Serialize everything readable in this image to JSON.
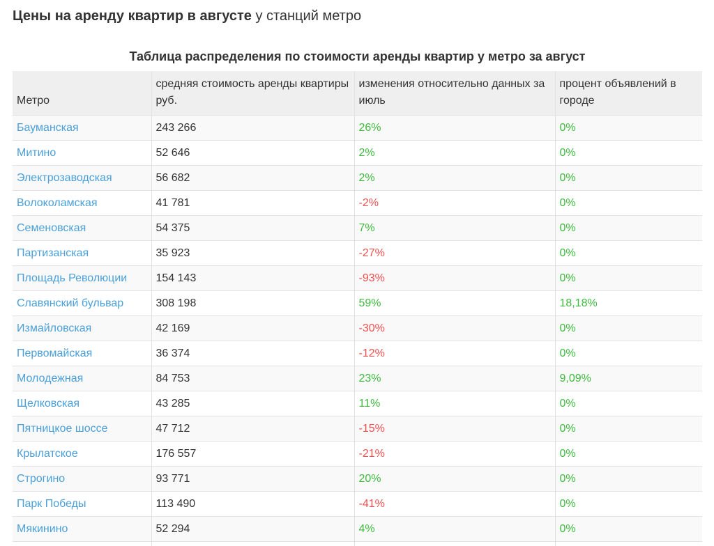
{
  "heading": {
    "bold": "Цены на аренду квартир в августе",
    "normal": "у станций метро"
  },
  "table": {
    "caption": "Таблица распределения по стоимости аренды квартир у метро за август",
    "headers": [
      "Метро",
      "средняя стоимость аренды квартиры руб.",
      "изменения относительно данных за июль",
      "процент объявлений в городе"
    ],
    "colors": {
      "positive": "#3fba3f",
      "negative": "#f05050",
      "link": "#4a9fd8"
    },
    "rows": [
      {
        "metro": "Бауманская",
        "price": "243 266",
        "change": "26%",
        "share": "0%"
      },
      {
        "metro": "Митино",
        "price": "52 646",
        "change": "2%",
        "share": "0%"
      },
      {
        "metro": "Электрозаводская",
        "price": "56 682",
        "change": "2%",
        "share": "0%"
      },
      {
        "metro": "Волоколамская",
        "price": "41 781",
        "change": "-2%",
        "share": "0%"
      },
      {
        "metro": "Семеновская",
        "price": "54 375",
        "change": "7%",
        "share": "0%"
      },
      {
        "metro": "Партизанская",
        "price": "35 923",
        "change": "-27%",
        "share": "0%"
      },
      {
        "metro": "Площадь Революции",
        "price": "154 143",
        "change": "-93%",
        "share": "0%"
      },
      {
        "metro": "Славянский бульвар",
        "price": "308 198",
        "change": "59%",
        "share": "18,18%"
      },
      {
        "metro": "Измайловская",
        "price": "42 169",
        "change": "-30%",
        "share": "0%"
      },
      {
        "metro": "Первомайская",
        "price": "36 374",
        "change": "-12%",
        "share": "0%"
      },
      {
        "metro": "Молодежная",
        "price": "84 753",
        "change": "23%",
        "share": "9,09%"
      },
      {
        "metro": "Щелковская",
        "price": "43 285",
        "change": "11%",
        "share": "0%"
      },
      {
        "metro": "Пятницкое шоссе",
        "price": "47 712",
        "change": "-15%",
        "share": "0%"
      },
      {
        "metro": "Крылатское",
        "price": "176 557",
        "change": "-21%",
        "share": "0%"
      },
      {
        "metro": "Строгино",
        "price": "93 771",
        "change": "20%",
        "share": "0%"
      },
      {
        "metro": "Парк Победы",
        "price": "113 490",
        "change": "-41%",
        "share": "0%"
      },
      {
        "metro": "Мякинино",
        "price": "52 294",
        "change": "4%",
        "share": "0%"
      }
    ]
  }
}
